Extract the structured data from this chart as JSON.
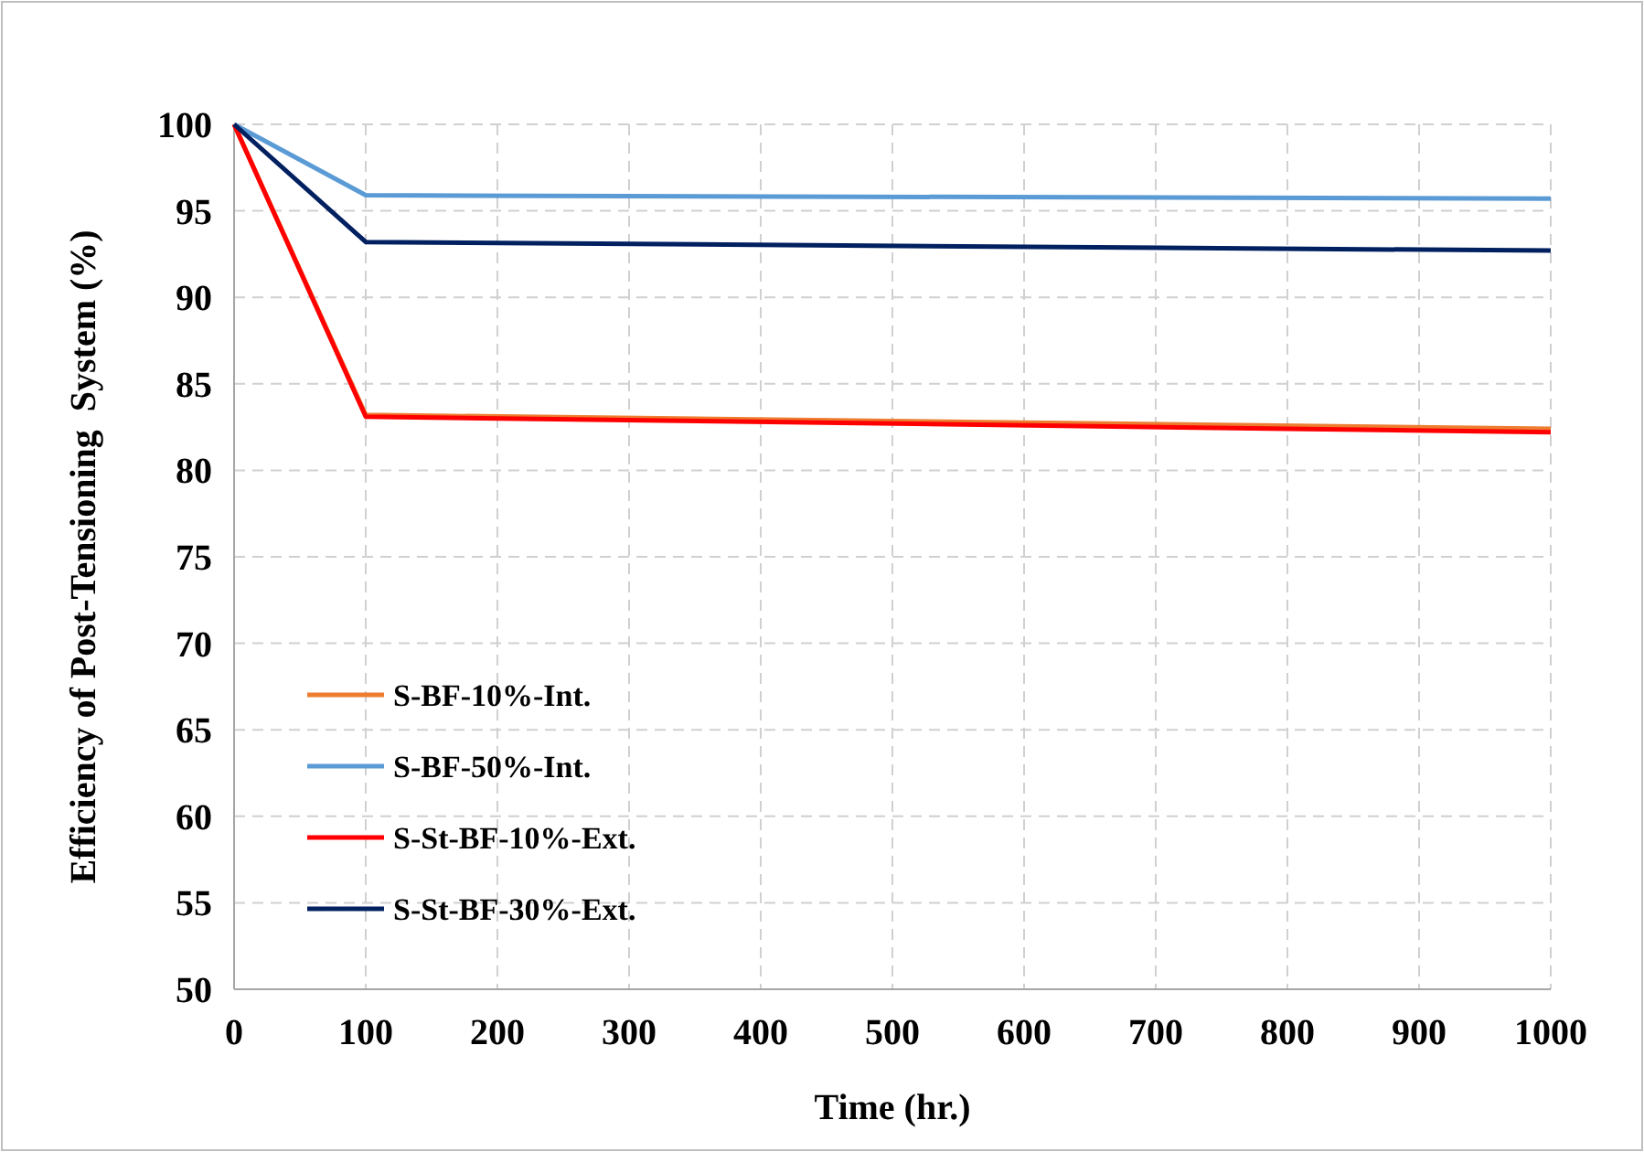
{
  "chart_data": {
    "type": "line",
    "xlabel": "Time (hr.)",
    "ylabel": "Efficiency of Post-Tensioning  System (%)",
    "x": [
      0,
      100,
      1000
    ],
    "series": [
      {
        "name": "S-BF-10%-Int.",
        "color": "#ed7d31",
        "values": [
          100,
          83.2,
          82.4
        ]
      },
      {
        "name": "S-BF-50%-Int.",
        "color": "#5b9bd5",
        "values": [
          100,
          95.9,
          95.7
        ]
      },
      {
        "name": "S-St-BF-10%-Ext.",
        "color": "#ff0000",
        "values": [
          100,
          83.1,
          82.2
        ]
      },
      {
        "name": "S-St-BF-30%-Ext.",
        "color": "#002060",
        "values": [
          100,
          93.2,
          92.7
        ]
      }
    ],
    "xlim": [
      0,
      1000
    ],
    "xticks": [
      0,
      100,
      200,
      300,
      400,
      500,
      600,
      700,
      800,
      900,
      1000
    ],
    "ylim": [
      50,
      100
    ],
    "yticks": [
      50,
      55,
      60,
      65,
      70,
      75,
      80,
      85,
      90,
      95,
      100
    ],
    "grid": true,
    "legend": "bottom left",
    "marker": "none",
    "line_style": "solid"
  }
}
